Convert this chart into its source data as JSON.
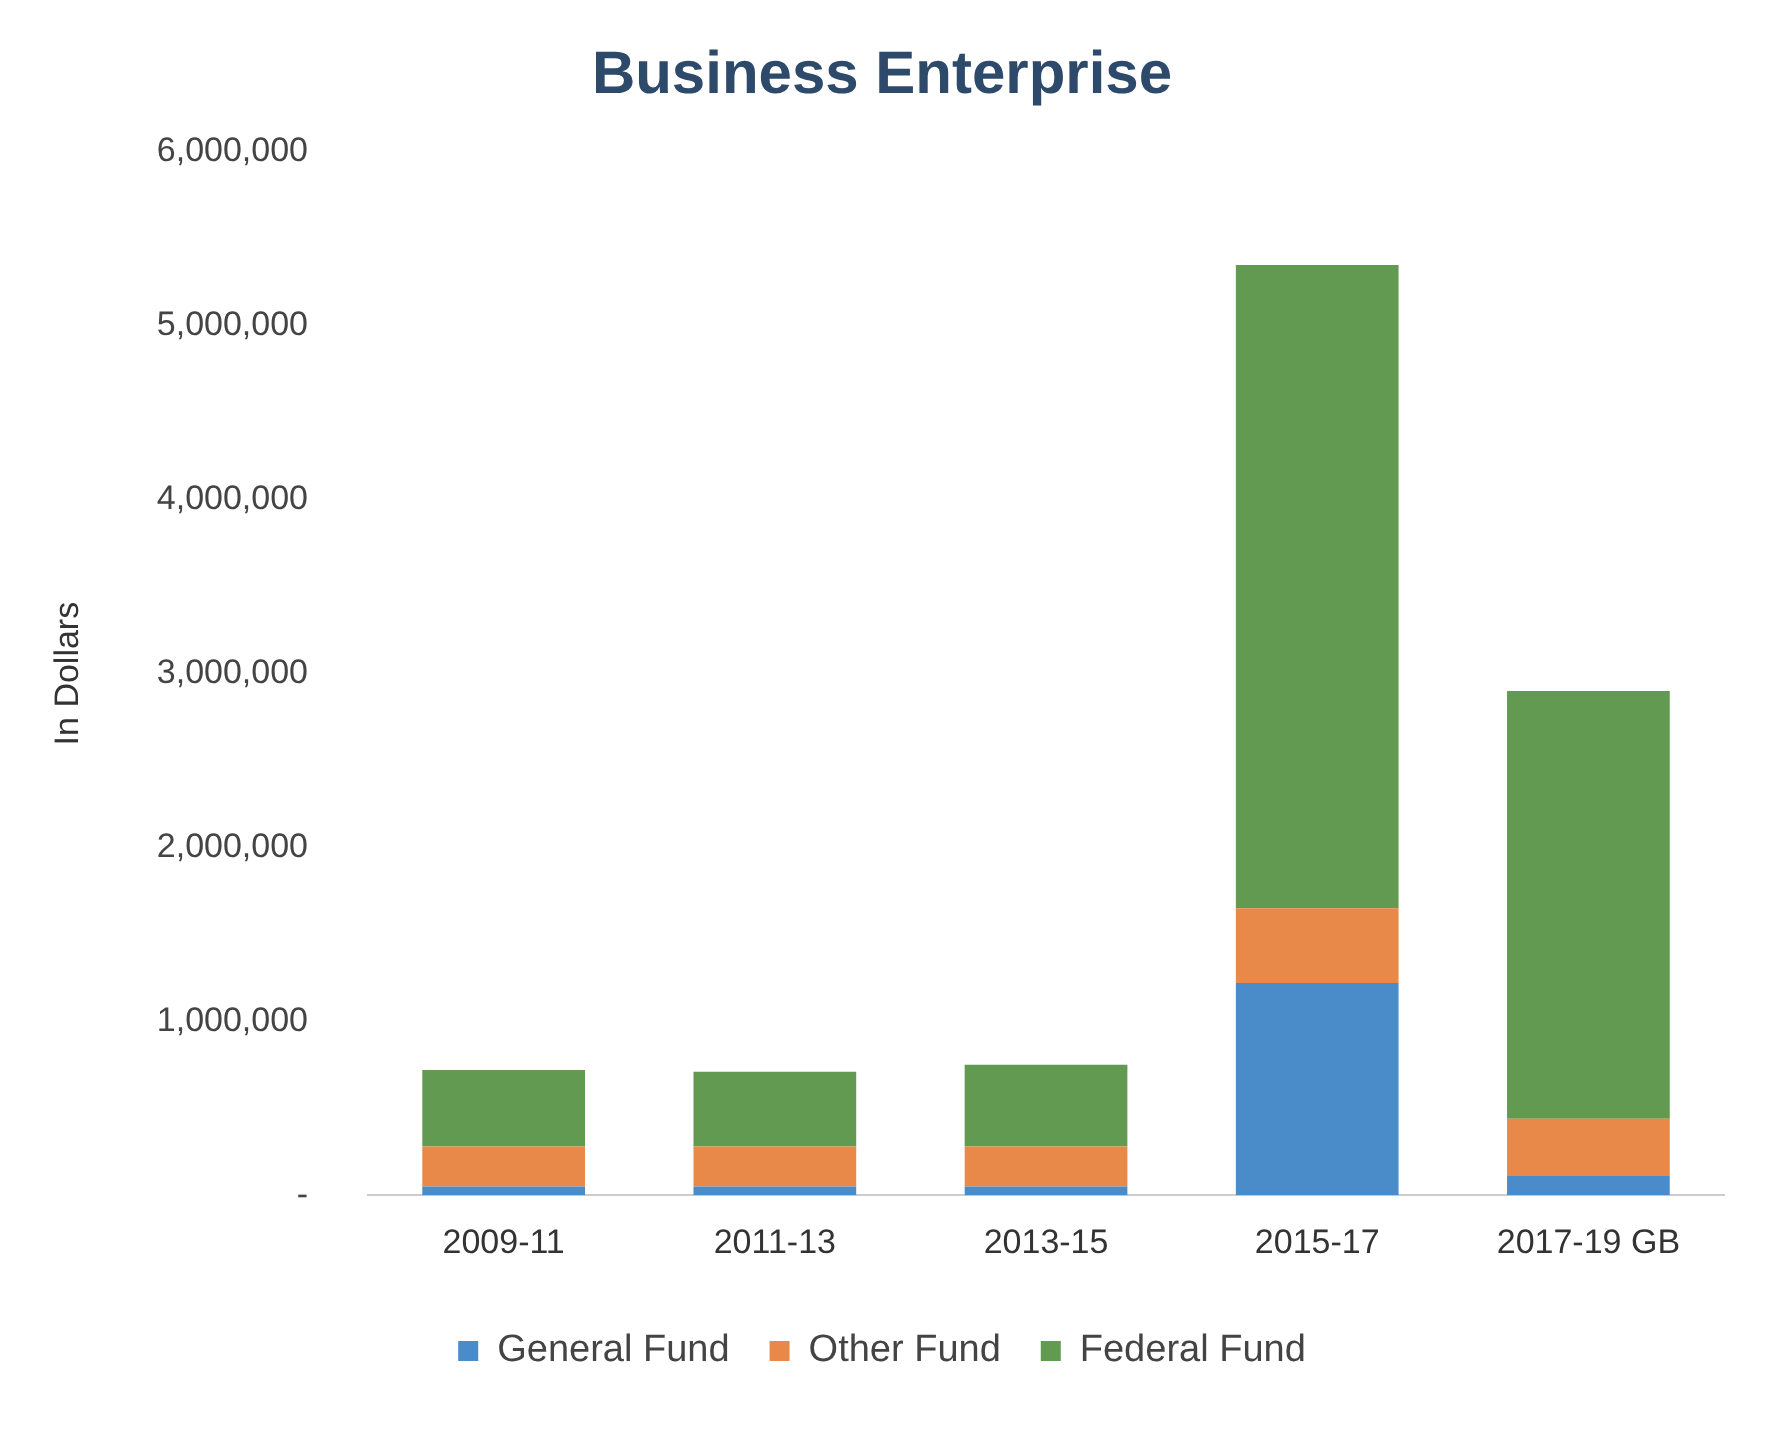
{
  "chart_data": {
    "type": "bar",
    "title": "Business Enterprise",
    "ylabel": "In Dollars",
    "stacked": true,
    "legend": "bottom",
    "grid": false,
    "categories": [
      "2009-11",
      "2011-13",
      "2013-15",
      "2015-17",
      "2017-19 GB"
    ],
    "series": [
      {
        "name": "General Fund",
        "color": "#4a8cc9",
        "values": [
          50000,
          50000,
          50000,
          1220000,
          110000
        ]
      },
      {
        "name": "Other Fund",
        "color": "#e8894a",
        "values": [
          230000,
          230000,
          230000,
          430000,
          330000
        ]
      },
      {
        "name": "Federal Fund",
        "color": "#619a50",
        "values": [
          440000,
          430000,
          470000,
          3700000,
          2460000
        ]
      }
    ],
    "ylim": [
      0,
      6000000
    ],
    "yticks": [
      {
        "value": 0,
        "label": "-"
      },
      {
        "value": 1000000,
        "label": "1,000,000"
      },
      {
        "value": 2000000,
        "label": "2,000,000"
      },
      {
        "value": 3000000,
        "label": "3,000,000"
      },
      {
        "value": 4000000,
        "label": "4,000,000"
      },
      {
        "value": 5000000,
        "label": "5,000,000"
      },
      {
        "value": 6000000,
        "label": "6,000,000"
      }
    ]
  }
}
